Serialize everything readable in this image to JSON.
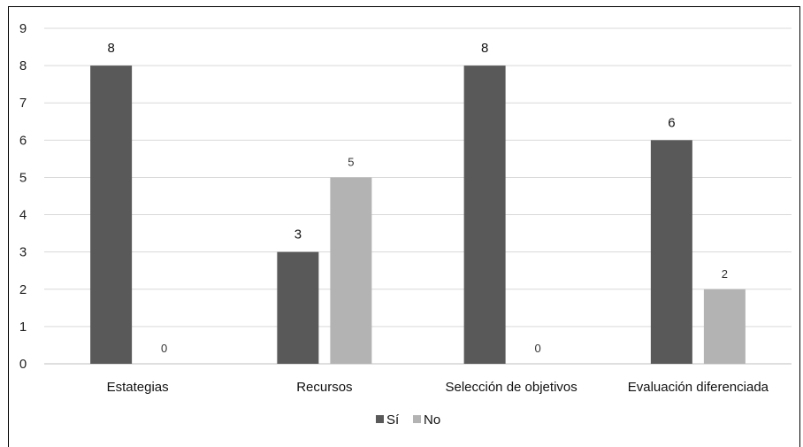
{
  "chart_data": {
    "type": "bar",
    "categories": [
      "Estategias",
      "Recursos",
      "Selección de objetivos",
      "Evaluación diferenciada"
    ],
    "series": [
      {
        "name": "Sí",
        "values": [
          8,
          3,
          8,
          6
        ],
        "color": "#595959"
      },
      {
        "name": "No",
        "values": [
          0,
          5,
          0,
          2
        ],
        "color": "#b3b3b3"
      }
    ],
    "data_labels": [
      [
        "8",
        "3",
        "8",
        "6"
      ],
      [
        "0",
        "5",
        "0",
        "2"
      ]
    ],
    "yticks": [
      "0",
      "1",
      "2",
      "3",
      "4",
      "5",
      "6",
      "7",
      "8",
      "9"
    ],
    "ylim": [
      0,
      9
    ],
    "grid": true,
    "legend_position": "bottom",
    "gridline_color": "#d9d9d9"
  }
}
